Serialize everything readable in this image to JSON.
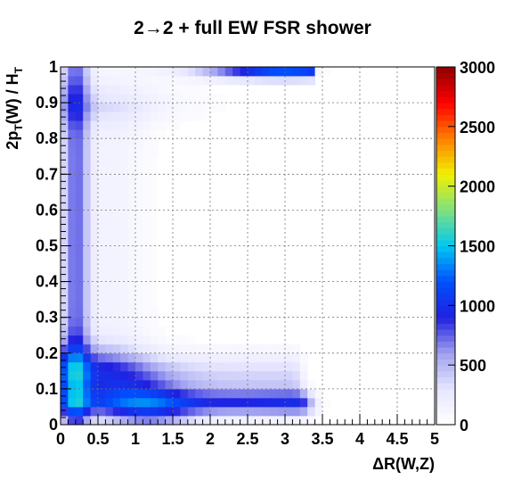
{
  "chart_data": {
    "type": "heatmap",
    "title": "2→2 + full EW FSR shower",
    "xlabel": "ΔR(W,Z)",
    "ylabel_main": "2p",
    "ylabel_sub": "T",
    "ylabel_mid": "(W) / H",
    "ylabel_sub2": "T",
    "xlim": [
      0,
      5
    ],
    "ylim": [
      0,
      1
    ],
    "x_ticks": [
      "0",
      "0.5",
      "1",
      "1.5",
      "2",
      "2.5",
      "3",
      "3.5",
      "4",
      "4.5",
      "5"
    ],
    "y_ticks": [
      "0",
      "0.1",
      "0.2",
      "0.3",
      "0.4",
      "0.5",
      "0.6",
      "0.7",
      "0.8",
      "0.9",
      "1"
    ],
    "z_range": [
      0,
      3000
    ],
    "z_ticks": [
      "0",
      "500",
      "1000",
      "1500",
      "2000",
      "2500",
      "3000"
    ],
    "grid": true,
    "bins_x": 50,
    "bins_y": 40,
    "colormap": [
      "#ffffff",
      "#e6e6ff",
      "#a0a0f0",
      "#2020e0",
      "#0050ff",
      "#00c8f0",
      "#80e080",
      "#f0f000",
      "#ff8000",
      "#ff0000",
      "#900000"
    ]
  }
}
